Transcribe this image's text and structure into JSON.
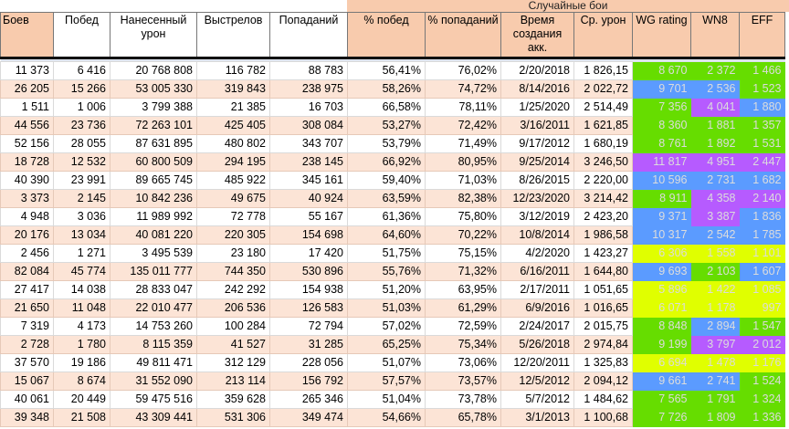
{
  "banner": "Случайные бои",
  "headers": [
    "Боев",
    "Побед",
    "Нанесенный урон",
    "Выстрелов",
    "Попаданий",
    "% побед",
    "% попаданий",
    "Время создания акк.",
    "Ср. урон",
    "WG rating",
    "WN8",
    "EFF"
  ],
  "palette": {
    "green": "#66dd00",
    "blue": "#5b9bff",
    "purple": "#b65bff",
    "yellow": "#e0ff00"
  },
  "rows": [
    {
      "cells": [
        "11 373",
        "6 416",
        "20 768 808",
        "116 782",
        "88 783",
        "56,41%",
        "76,02%",
        "2/20/2018",
        "1 826,15",
        "8 670",
        "2 372",
        "1 466"
      ],
      "colors": [
        "green",
        "green",
        "green"
      ]
    },
    {
      "cells": [
        "26 205",
        "15 266",
        "53 005 330",
        "319 843",
        "238 975",
        "58,26%",
        "74,72%",
        "8/14/2016",
        "2 022,72",
        "9 701",
        "2 536",
        "1 523"
      ],
      "colors": [
        "blue",
        "blue",
        "green"
      ]
    },
    {
      "cells": [
        "1 511",
        "1 006",
        "3 799 388",
        "21 385",
        "16 703",
        "66,58%",
        "78,11%",
        "1/25/2020",
        "2 514,49",
        "7 356",
        "4 041",
        "1 880"
      ],
      "colors": [
        "green",
        "purple",
        "blue"
      ]
    },
    {
      "cells": [
        "44 556",
        "23 736",
        "72 263 101",
        "425 405",
        "308 084",
        "53,27%",
        "72,42%",
        "3/16/2011",
        "1 621,85",
        "8 360",
        "1 881",
        "1 357"
      ],
      "colors": [
        "green",
        "green",
        "green"
      ]
    },
    {
      "cells": [
        "52 156",
        "28 055",
        "87 631 895",
        "480 802",
        "343 707",
        "53,79%",
        "71,49%",
        "9/17/2012",
        "1 680,19",
        "8 761",
        "1 892",
        "1 531"
      ],
      "colors": [
        "green",
        "green",
        "green"
      ]
    },
    {
      "cells": [
        "18 728",
        "12 532",
        "60 800 509",
        "294 195",
        "238 145",
        "66,92%",
        "80,95%",
        "9/25/2014",
        "3 246,50",
        "11 817",
        "4 951",
        "2 447"
      ],
      "colors": [
        "purple",
        "purple",
        "purple"
      ]
    },
    {
      "cells": [
        "40 390",
        "23 991",
        "89 665 745",
        "485 922",
        "345 161",
        "59,40%",
        "71,03%",
        "8/26/2015",
        "2 220,00",
        "10 596",
        "2 731",
        "1 682"
      ],
      "colors": [
        "blue",
        "blue",
        "blue"
      ]
    },
    {
      "cells": [
        "3 373",
        "2 145",
        "10 842 236",
        "49 675",
        "40 924",
        "63,59%",
        "82,38%",
        "12/23/2020",
        "3 214,42",
        "8 911",
        "4 358",
        "2 140"
      ],
      "colors": [
        "green",
        "purple",
        "purple"
      ]
    },
    {
      "cells": [
        "4 948",
        "3 036",
        "11 989 992",
        "72 778",
        "55 167",
        "61,36%",
        "75,80%",
        "3/12/2019",
        "2 423,20",
        "9 371",
        "3 387",
        "1 836"
      ],
      "colors": [
        "blue",
        "purple",
        "blue"
      ]
    },
    {
      "cells": [
        "20 176",
        "13 034",
        "40 081 220",
        "220 305",
        "154 698",
        "64,60%",
        "70,22%",
        "10/8/2014",
        "1 986,58",
        "10 317",
        "2 542",
        "1 785"
      ],
      "colors": [
        "blue",
        "blue",
        "blue"
      ]
    },
    {
      "cells": [
        "2 456",
        "1 271",
        "3 495 539",
        "23 180",
        "17 420",
        "51,75%",
        "75,15%",
        "4/2/2020",
        "1 423,27",
        "6 306",
        "1 558",
        "1 101"
      ],
      "colors": [
        "yellow",
        "yellow",
        "yellow"
      ]
    },
    {
      "cells": [
        "82 084",
        "45 774",
        "135 011 777",
        "744 350",
        "530 896",
        "55,76%",
        "71,32%",
        "6/16/2011",
        "1 644,80",
        "9 693",
        "2 103",
        "1 607"
      ],
      "colors": [
        "blue",
        "green",
        "blue"
      ]
    },
    {
      "cells": [
        "27 417",
        "14 038",
        "28 833 047",
        "242 292",
        "154 938",
        "51,20%",
        "63,95%",
        "2/17/2011",
        "1 051,65",
        "5 896",
        "1 422",
        "1 085"
      ],
      "colors": [
        "yellow",
        "yellow",
        "yellow"
      ]
    },
    {
      "cells": [
        "21 650",
        "11 048",
        "22 010 477",
        "206 536",
        "126 583",
        "51,03%",
        "61,29%",
        "6/9/2016",
        "1 016,65",
        "6 071",
        "1 178",
        "997"
      ],
      "colors": [
        "yellow",
        "yellow",
        "yellow"
      ]
    },
    {
      "cells": [
        "7 319",
        "4 173",
        "14 753 260",
        "100 284",
        "72 794",
        "57,02%",
        "72,59%",
        "2/24/2017",
        "2 015,75",
        "8 848",
        "2 894",
        "1 547"
      ],
      "colors": [
        "green",
        "blue",
        "green"
      ]
    },
    {
      "cells": [
        "2 728",
        "1 780",
        "8 115 359",
        "41 527",
        "31 285",
        "65,25%",
        "75,34%",
        "5/26/2018",
        "2 974,84",
        "9 199",
        "3 797",
        "2 012"
      ],
      "colors": [
        "green",
        "purple",
        "purple"
      ]
    },
    {
      "cells": [
        "37 570",
        "19 186",
        "49 811 471",
        "312 129",
        "228 056",
        "51,07%",
        "73,06%",
        "12/20/2011",
        "1 325,83",
        "6 694",
        "1 478",
        "1 176"
      ],
      "colors": [
        "yellow",
        "yellow",
        "yellow"
      ]
    },
    {
      "cells": [
        "15 067",
        "8 674",
        "31 552 090",
        "213 114",
        "156 792",
        "57,57%",
        "73,57%",
        "12/5/2012",
        "2 094,12",
        "9 661",
        "2 741",
        "1 524"
      ],
      "colors": [
        "blue",
        "blue",
        "green"
      ]
    },
    {
      "cells": [
        "40 061",
        "20 449",
        "59 475 516",
        "359 628",
        "265 346",
        "51,04%",
        "73,78%",
        "5/7/2012",
        "1 484,62",
        "7 565",
        "1 791",
        "1 324"
      ],
      "colors": [
        "green",
        "green",
        "green"
      ]
    },
    {
      "cells": [
        "39 348",
        "21 508",
        "43 309 441",
        "531 306",
        "349 474",
        "54,66%",
        "65,78%",
        "3/1/2013",
        "1 100,68",
        "7 726",
        "1 809",
        "1 336"
      ],
      "colors": [
        "green",
        "green",
        "green"
      ]
    }
  ]
}
